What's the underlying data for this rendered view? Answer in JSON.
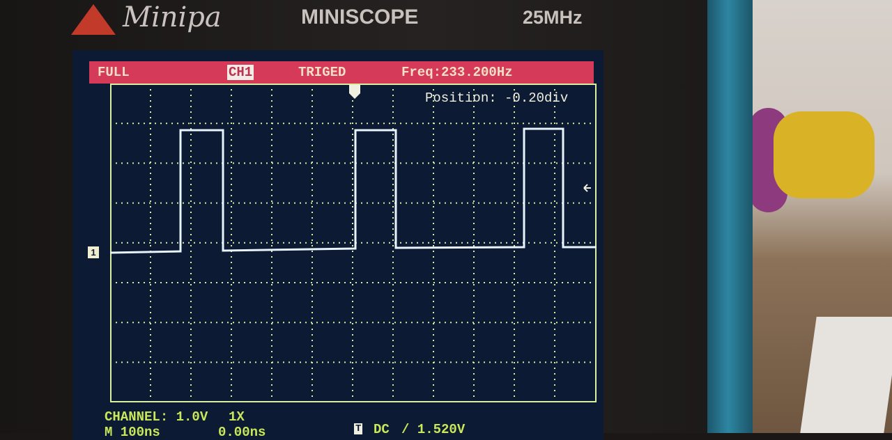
{
  "device": {
    "brand": "Minipa",
    "model": "MINISCOPE",
    "bandwidth": "25MHz"
  },
  "status_bar": {
    "mode": "FULL",
    "channel": "CH1",
    "trigger_state": "TRIGED",
    "frequency": "Freq:233.200Hz"
  },
  "overlay": {
    "position": "Position: -0.20div",
    "channel_marker": "1"
  },
  "footer": {
    "channel": "CHANNEL: 1.0V",
    "probe": "1X",
    "timebase": "M 100ns",
    "time_offset": "0.00ns",
    "trigger_icon": "T",
    "coupling": "DC",
    "trigger_level": "/ 1.520V"
  },
  "colors": {
    "status_bar": "#d53a58",
    "screen": "#0d1a33",
    "grid": "#d8f0a0",
    "trace": "#e8f4ff"
  }
}
